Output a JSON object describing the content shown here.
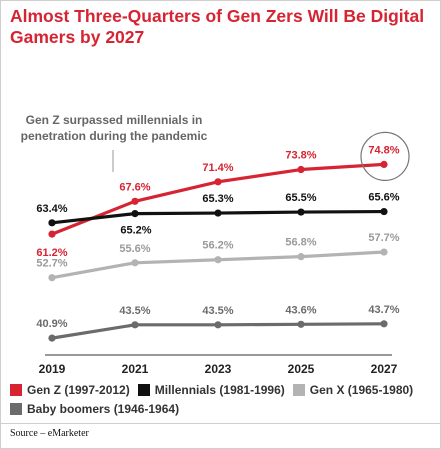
{
  "title": "Almost Three-Quarters of Gen Zers Will Be Digital Gamers by 2027",
  "annotation": "Gen Z surpassed millennials in penetration during the pandemic",
  "source": "Source – eMarketer",
  "chart_data": {
    "type": "line",
    "title": "Almost Three-Quarters of Gen Zers Will Be Digital Gamers by 2027",
    "categories": [
      "2019",
      "2021",
      "2023",
      "2025",
      "2027"
    ],
    "ylim": [
      38,
      78
    ],
    "grid": false,
    "legend_position": "bottom",
    "series": [
      {
        "name": "Gen Z (1997-2012)",
        "color": "#d62433",
        "values": [
          61.2,
          67.6,
          71.4,
          73.8,
          74.8
        ],
        "labels": [
          "61.2%",
          "67.6%",
          "71.4%",
          "73.8%",
          "74.8%"
        ]
      },
      {
        "name": "Millennials (1981-1996)",
        "color": "#111111",
        "values": [
          63.4,
          65.2,
          65.3,
          65.5,
          65.6
        ],
        "labels": [
          "63.4%",
          "65.2%",
          "65.3%",
          "65.5%",
          "65.6%"
        ]
      },
      {
        "name": "Gen X (1965-1980)",
        "color": "#b3b3b3",
        "values": [
          52.7,
          55.6,
          56.2,
          56.8,
          57.7
        ],
        "labels": [
          "52.7%",
          "55.6%",
          "56.2%",
          "56.8%",
          "57.7%"
        ]
      },
      {
        "name": "Baby boomers (1946-1964)",
        "color": "#6b6b6b",
        "values": [
          40.9,
          43.5,
          43.5,
          43.6,
          43.7
        ],
        "labels": [
          "40.9%",
          "43.5%",
          "43.5%",
          "43.6%",
          "43.7%"
        ]
      }
    ],
    "highlight": {
      "series": "Gen Z (1997-2012)",
      "category": "2027"
    }
  }
}
